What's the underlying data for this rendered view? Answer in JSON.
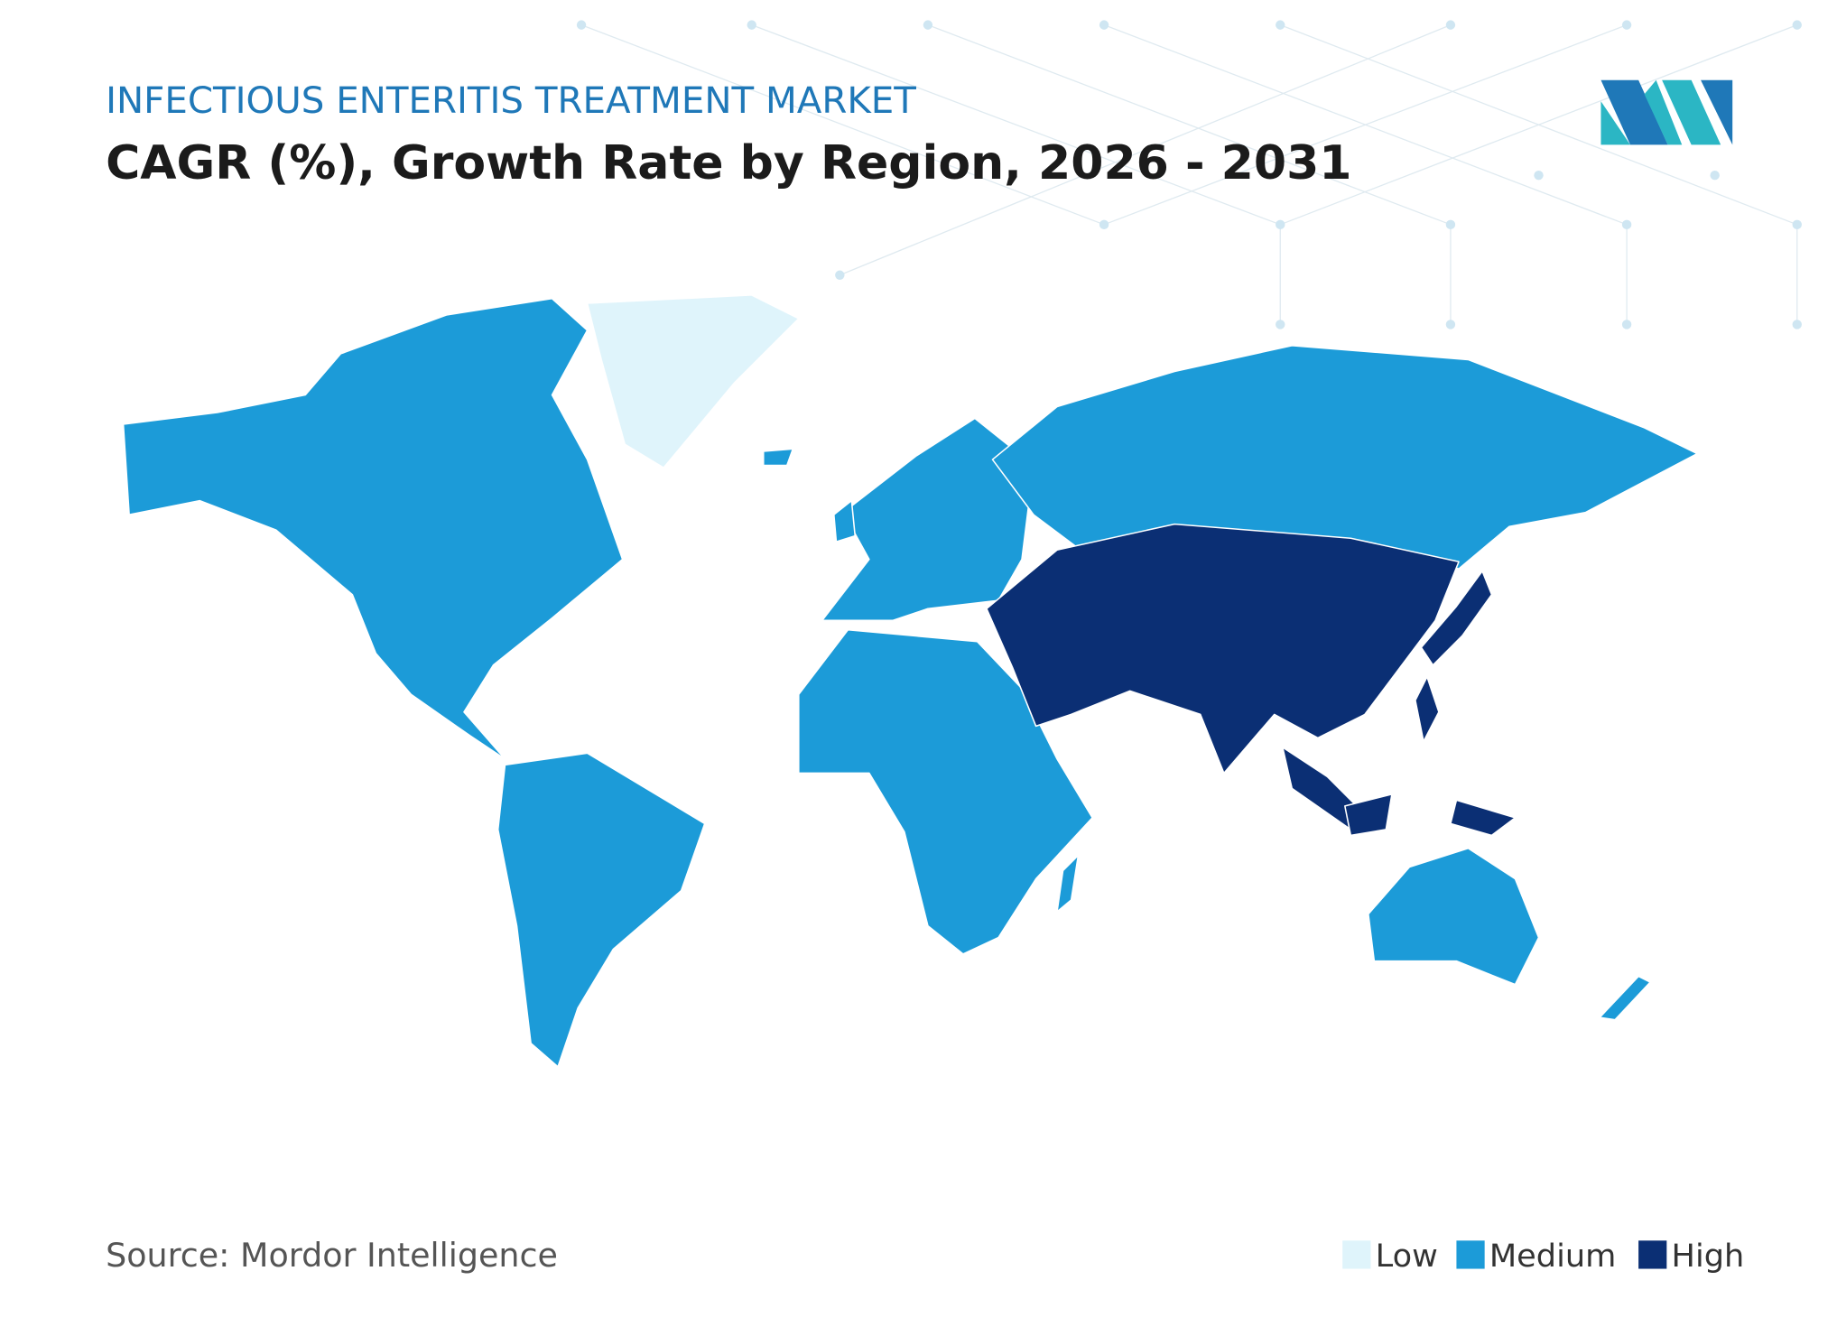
{
  "header": {
    "title": "INFECTIOUS ENTERITIS TREATMENT MARKET",
    "subtitle": "CAGR (%), Growth Rate by Region, 2026 - 2031"
  },
  "source": "Source: Mordor Intelligence",
  "legend": {
    "items": [
      {
        "label": "Low",
        "color": "#dff4fb"
      },
      {
        "label": "Medium",
        "color": "#1c9bd8"
      },
      {
        "label": "High",
        "color": "#0b2f74"
      }
    ]
  }
}
